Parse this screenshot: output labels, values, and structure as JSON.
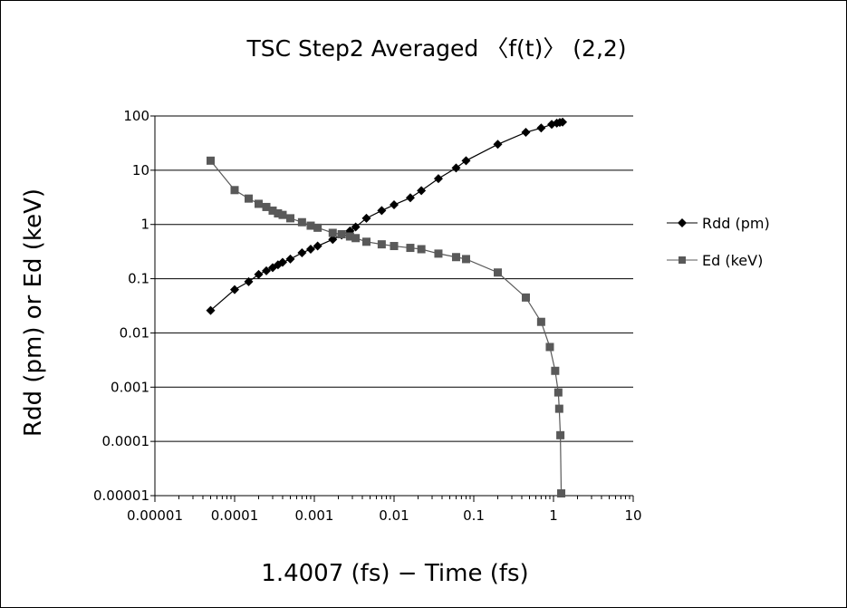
{
  "chart_data": {
    "type": "line",
    "title": "TSC Step2 Averaged 〈f(t)〉 (2,2)",
    "xlabel": "1.4007 (fs) − Time (fs)",
    "ylabel": "Rdd (pm) or Ed (keV)",
    "x_scale": "log",
    "y_scale": "log",
    "xlim": [
      1e-05,
      10
    ],
    "ylim": [
      1e-05,
      100
    ],
    "x_ticks": [
      "0.00001",
      "0.0001",
      "0.001",
      "0.01",
      "0.1",
      "1",
      "10"
    ],
    "y_ticks": [
      "0.00001",
      "0.0001",
      "0.001",
      "0.01",
      "0.1",
      "1",
      "10",
      "100"
    ],
    "grid": "horizontal major",
    "legend_position": "right",
    "series": [
      {
        "name": "Rdd (pm)",
        "marker": "diamond",
        "color": "#000000",
        "x": [
          5e-05,
          0.0001,
          0.00015,
          0.0002,
          0.00025,
          0.0003,
          0.00035,
          0.0004,
          0.0005,
          0.0007,
          0.0009,
          0.0011,
          0.0017,
          0.0022,
          0.0028,
          0.0033,
          0.0045,
          0.007,
          0.01,
          0.016,
          0.022,
          0.036,
          0.06,
          0.08,
          0.2,
          0.45,
          0.7,
          0.95,
          1.1,
          1.2,
          1.3
        ],
        "y": [
          0.026,
          0.063,
          0.088,
          0.12,
          0.14,
          0.16,
          0.18,
          0.2,
          0.23,
          0.3,
          0.35,
          0.4,
          0.53,
          0.64,
          0.76,
          0.9,
          1.3,
          1.8,
          2.3,
          3.1,
          4.2,
          7.0,
          11,
          15,
          30,
          50,
          60,
          70,
          74,
          76,
          77
        ]
      },
      {
        "name": "Ed (keV)",
        "marker": "square",
        "color": "#595959",
        "x": [
          5e-05,
          0.0001,
          0.00015,
          0.0002,
          0.00025,
          0.0003,
          0.00035,
          0.0004,
          0.0005,
          0.0007,
          0.0009,
          0.0011,
          0.0017,
          0.0022,
          0.0028,
          0.0033,
          0.0045,
          0.007,
          0.01,
          0.016,
          0.022,
          0.036,
          0.06,
          0.08,
          0.2,
          0.45,
          0.7,
          0.9,
          1.05,
          1.15,
          1.18,
          1.22,
          1.25
        ],
        "y": [
          15,
          4.3,
          3.0,
          2.4,
          2.1,
          1.8,
          1.6,
          1.5,
          1.3,
          1.1,
          0.95,
          0.87,
          0.7,
          0.66,
          0.6,
          0.56,
          0.48,
          0.43,
          0.4,
          0.37,
          0.35,
          0.29,
          0.25,
          0.23,
          0.13,
          0.045,
          0.016,
          0.0055,
          0.002,
          0.0008,
          0.0004,
          0.00013,
          1.1e-05
        ]
      }
    ]
  }
}
